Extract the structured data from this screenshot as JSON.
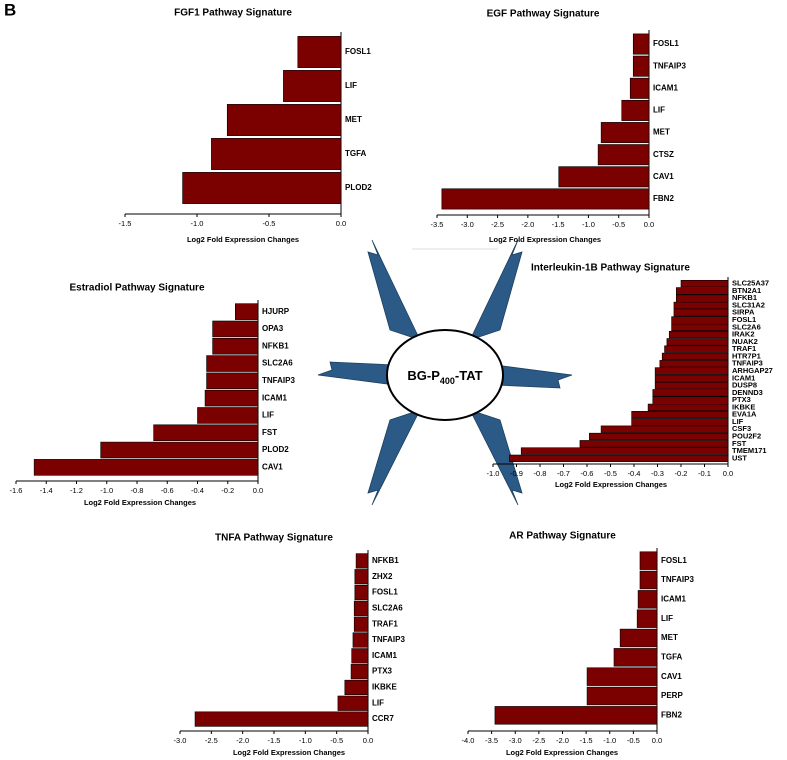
{
  "panel_label": "B",
  "center_label": {
    "parts": [
      "BG-P",
      "400",
      "-TAT"
    ]
  },
  "chart_data": [
    {
      "type": "bar",
      "orientation": "horizontal",
      "title": "FGF1 Pathway Signature",
      "xlabel": "Log2 Fold Expression Changes",
      "categories": [
        "FOSL1",
        "LIF",
        "MET",
        "TGFA",
        "PLOD2"
      ],
      "values": [
        -0.3,
        -0.4,
        -0.79,
        -0.9,
        -1.1
      ],
      "color": "#7b0000",
      "xlim": [
        -1.5,
        0
      ],
      "xticks": [
        -1.5,
        {
          "value": -1,
          "label": "-1.0"
        },
        -0.5,
        {
          "value": 0,
          "label": "0.0"
        }
      ]
    },
    {
      "type": "bar",
      "orientation": "horizontal",
      "title": "EGF Pathway Signature",
      "xlabel": "Log2 Fold Expression Changes",
      "categories": [
        "FOSL1",
        "TNFAIP3",
        "ICAM1",
        "LIF",
        "MET",
        "CTSZ",
        "CAV1",
        "FBN2"
      ],
      "values": [
        -0.26,
        -0.26,
        -0.31,
        -0.45,
        -0.79,
        -0.84,
        -1.49,
        -3.42
      ],
      "color": "#7b0000",
      "xlim": [
        -3.5,
        0
      ],
      "xticks": [
        -3.5,
        {
          "value": -3,
          "label": "-3.0"
        },
        -2.5,
        {
          "value": -2,
          "label": "-2.0"
        },
        -1.5,
        {
          "value": -1,
          "label": "-1.0"
        },
        -0.5,
        {
          "value": 0,
          "label": "0.0"
        }
      ]
    },
    {
      "type": "bar",
      "orientation": "horizontal",
      "title": "Estradiol Pathway Signature",
      "xlabel": "Log2 Fold Expression Changes",
      "categories": [
        "HJURP",
        "OPA3",
        "NFKB1",
        "SLC2A6",
        "TNFAIP3",
        "ICAM1",
        "LIF",
        "FST",
        "PLOD2",
        "CAV1"
      ],
      "values": [
        -0.15,
        -0.3,
        -0.3,
        -0.34,
        -0.34,
        -0.35,
        -0.4,
        -0.69,
        -1.04,
        -1.48
      ],
      "color": "#7b0000",
      "xlim": [
        -1.6,
        0
      ],
      "xticks": [
        -1.6,
        -1.4,
        -1.2,
        {
          "value": -1,
          "label": "-1.0"
        },
        -0.8,
        -0.6,
        -0.4,
        -0.2,
        {
          "value": 0,
          "label": "0.0"
        }
      ]
    },
    {
      "type": "bar",
      "orientation": "horizontal",
      "title": "Interleukin-1B Pathway Signature",
      "xlabel": "Log2 Fold Expression Changes",
      "categories": [
        "SLC25A37",
        "BTN2A1",
        "NFKB1",
        "SLC31A2",
        "SIRPA",
        "FOSL1",
        "SLC2A6",
        "IRAK2",
        "NUAK2",
        "TRAF1",
        "HTR7P1",
        "TNFAIP3",
        "ARHGAP27",
        "ICAM1",
        "DUSP8",
        "DENND3",
        "PTX3",
        "IKBKE",
        "EVA1A",
        "LIF",
        "CSF3",
        "POU2F2",
        "FST",
        "TMEM171",
        "UST"
      ],
      "values": [
        -0.2,
        -0.22,
        -0.22,
        -0.23,
        -0.23,
        -0.24,
        -0.24,
        -0.25,
        -0.26,
        -0.27,
        -0.28,
        -0.29,
        -0.31,
        -0.31,
        -0.31,
        -0.32,
        -0.32,
        -0.34,
        -0.41,
        -0.41,
        -0.54,
        -0.59,
        -0.63,
        -0.88,
        -0.93
      ],
      "color": "#7b0000",
      "xlim": [
        -1,
        0
      ],
      "xticks": [
        {
          "value": -1,
          "label": "-1.0"
        },
        -0.9,
        -0.8,
        -0.7,
        -0.6,
        -0.5,
        -0.4,
        -0.3,
        -0.2,
        -0.1,
        {
          "value": 0,
          "label": "0.0"
        }
      ]
    },
    {
      "type": "bar",
      "orientation": "horizontal",
      "title": "TNFA Pathway Signature",
      "xlabel": "Log2 Fold Expression Changes",
      "categories": [
        "NFKB1",
        "ZHX2",
        "FOSL1",
        "SLC2A6",
        "TRAF1",
        "TNFAIP3",
        "ICAM1",
        "PTX3",
        "IKBKE",
        "LIF",
        "CCR7"
      ],
      "values": [
        -0.19,
        -0.21,
        -0.21,
        -0.22,
        -0.22,
        -0.24,
        -0.26,
        -0.27,
        -0.37,
        -0.48,
        -2.76
      ],
      "color": "#7b0000",
      "xlim": [
        -3,
        0
      ],
      "xticks": [
        {
          "value": -3,
          "label": "-3.0"
        },
        -2.5,
        {
          "value": -2,
          "label": "-2.0"
        },
        -1.5,
        {
          "value": -1,
          "label": "-1.0"
        },
        -0.5,
        {
          "value": 0,
          "label": "0.0"
        }
      ]
    },
    {
      "type": "bar",
      "orientation": "horizontal",
      "title": "AR Pathway Signature",
      "xlabel": "Log2 Fold Expression Changes",
      "categories": [
        "FOSL1",
        "TNFAIP3",
        "ICAM1",
        "LIF",
        "MET",
        "TGFA",
        "CAV1",
        "PERP",
        "FBN2"
      ],
      "values": [
        -0.36,
        -0.36,
        -0.4,
        -0.42,
        -0.78,
        -0.91,
        -1.48,
        -1.48,
        -3.43
      ],
      "color": "#7b0000",
      "xlim": [
        -4,
        0
      ],
      "xticks": [
        {
          "value": -4,
          "label": "-4.0"
        },
        -3.5,
        {
          "value": -3,
          "label": "-3.0"
        },
        -2.5,
        {
          "value": -2,
          "label": "-2.0"
        },
        -1.5,
        {
          "value": -1,
          "label": "-1.0"
        },
        -0.5,
        {
          "value": 0,
          "label": "0.0"
        }
      ]
    }
  ]
}
